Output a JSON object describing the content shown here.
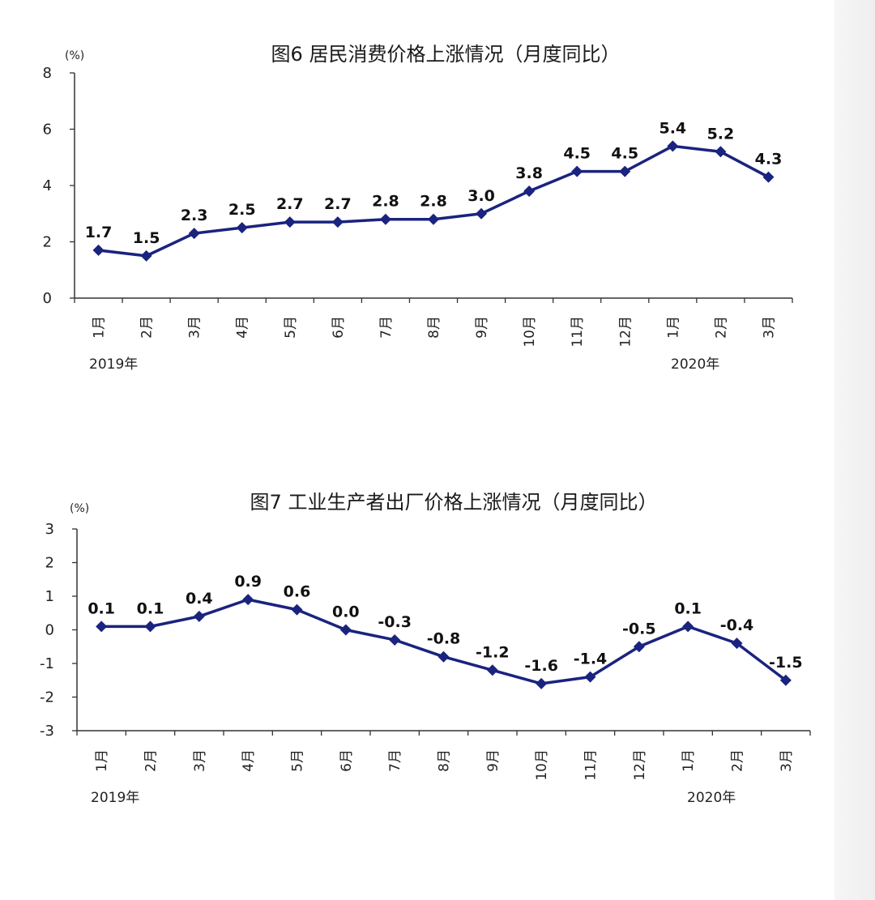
{
  "colors": {
    "series": "#1a237e",
    "axis": "#333333"
  },
  "chart_data": [
    {
      "type": "line",
      "title": "图6   居民消费价格上涨情况（月度同比）",
      "unit": "(%)",
      "categories": [
        "1月",
        "2月",
        "3月",
        "4月",
        "5月",
        "6月",
        "7月",
        "8月",
        "9月",
        "10月",
        "11月",
        "12月",
        "1月",
        "2月",
        "3月"
      ],
      "year_labels": [
        "2019年",
        "2020年"
      ],
      "yticks": [
        "8",
        "6",
        "4",
        "2",
        "0"
      ],
      "ylim": [
        0,
        8
      ],
      "series": [
        {
          "values": [
            1.7,
            1.5,
            2.3,
            2.5,
            2.7,
            2.7,
            2.8,
            2.8,
            3.0,
            3.8,
            4.5,
            4.5,
            5.4,
            5.2,
            4.3
          ]
        }
      ],
      "data_labels": [
        "1.7",
        "1.5",
        "2.3",
        "2.5",
        "2.7",
        "2.7",
        "2.8",
        "2.8",
        "3.0",
        "3.8",
        "4.5",
        "4.5",
        "5.4",
        "5.2",
        "4.3"
      ],
      "grid": false,
      "legend": "none"
    },
    {
      "type": "line",
      "title": "图7   工业生产者出厂价格上涨情况（月度同比）",
      "unit": "(%)",
      "categories": [
        "1月",
        "2月",
        "3月",
        "4月",
        "5月",
        "6月",
        "7月",
        "8月",
        "9月",
        "10月",
        "11月",
        "12月",
        "1月",
        "2月",
        "3月"
      ],
      "year_labels": [
        "2019年",
        "2020年"
      ],
      "yticks": [
        "3",
        "2",
        "1",
        "0",
        "-1",
        "-2",
        "-3"
      ],
      "ylim": [
        -3,
        3
      ],
      "series": [
        {
          "values": [
            0.1,
            0.1,
            0.4,
            0.9,
            0.6,
            0.0,
            -0.3,
            -0.8,
            -1.2,
            -1.6,
            -1.4,
            -0.5,
            0.1,
            -0.4,
            -1.5
          ]
        }
      ],
      "data_labels": [
        "0.1",
        "0.1",
        "0.4",
        "0.9",
        "0.6",
        "0.0",
        "-0.3",
        "-0.8",
        "-1.2",
        "-1.6",
        "-1.4",
        "-0.5",
        "0.1",
        "-0.4",
        "-1.5"
      ],
      "grid": false,
      "legend": "none"
    }
  ]
}
